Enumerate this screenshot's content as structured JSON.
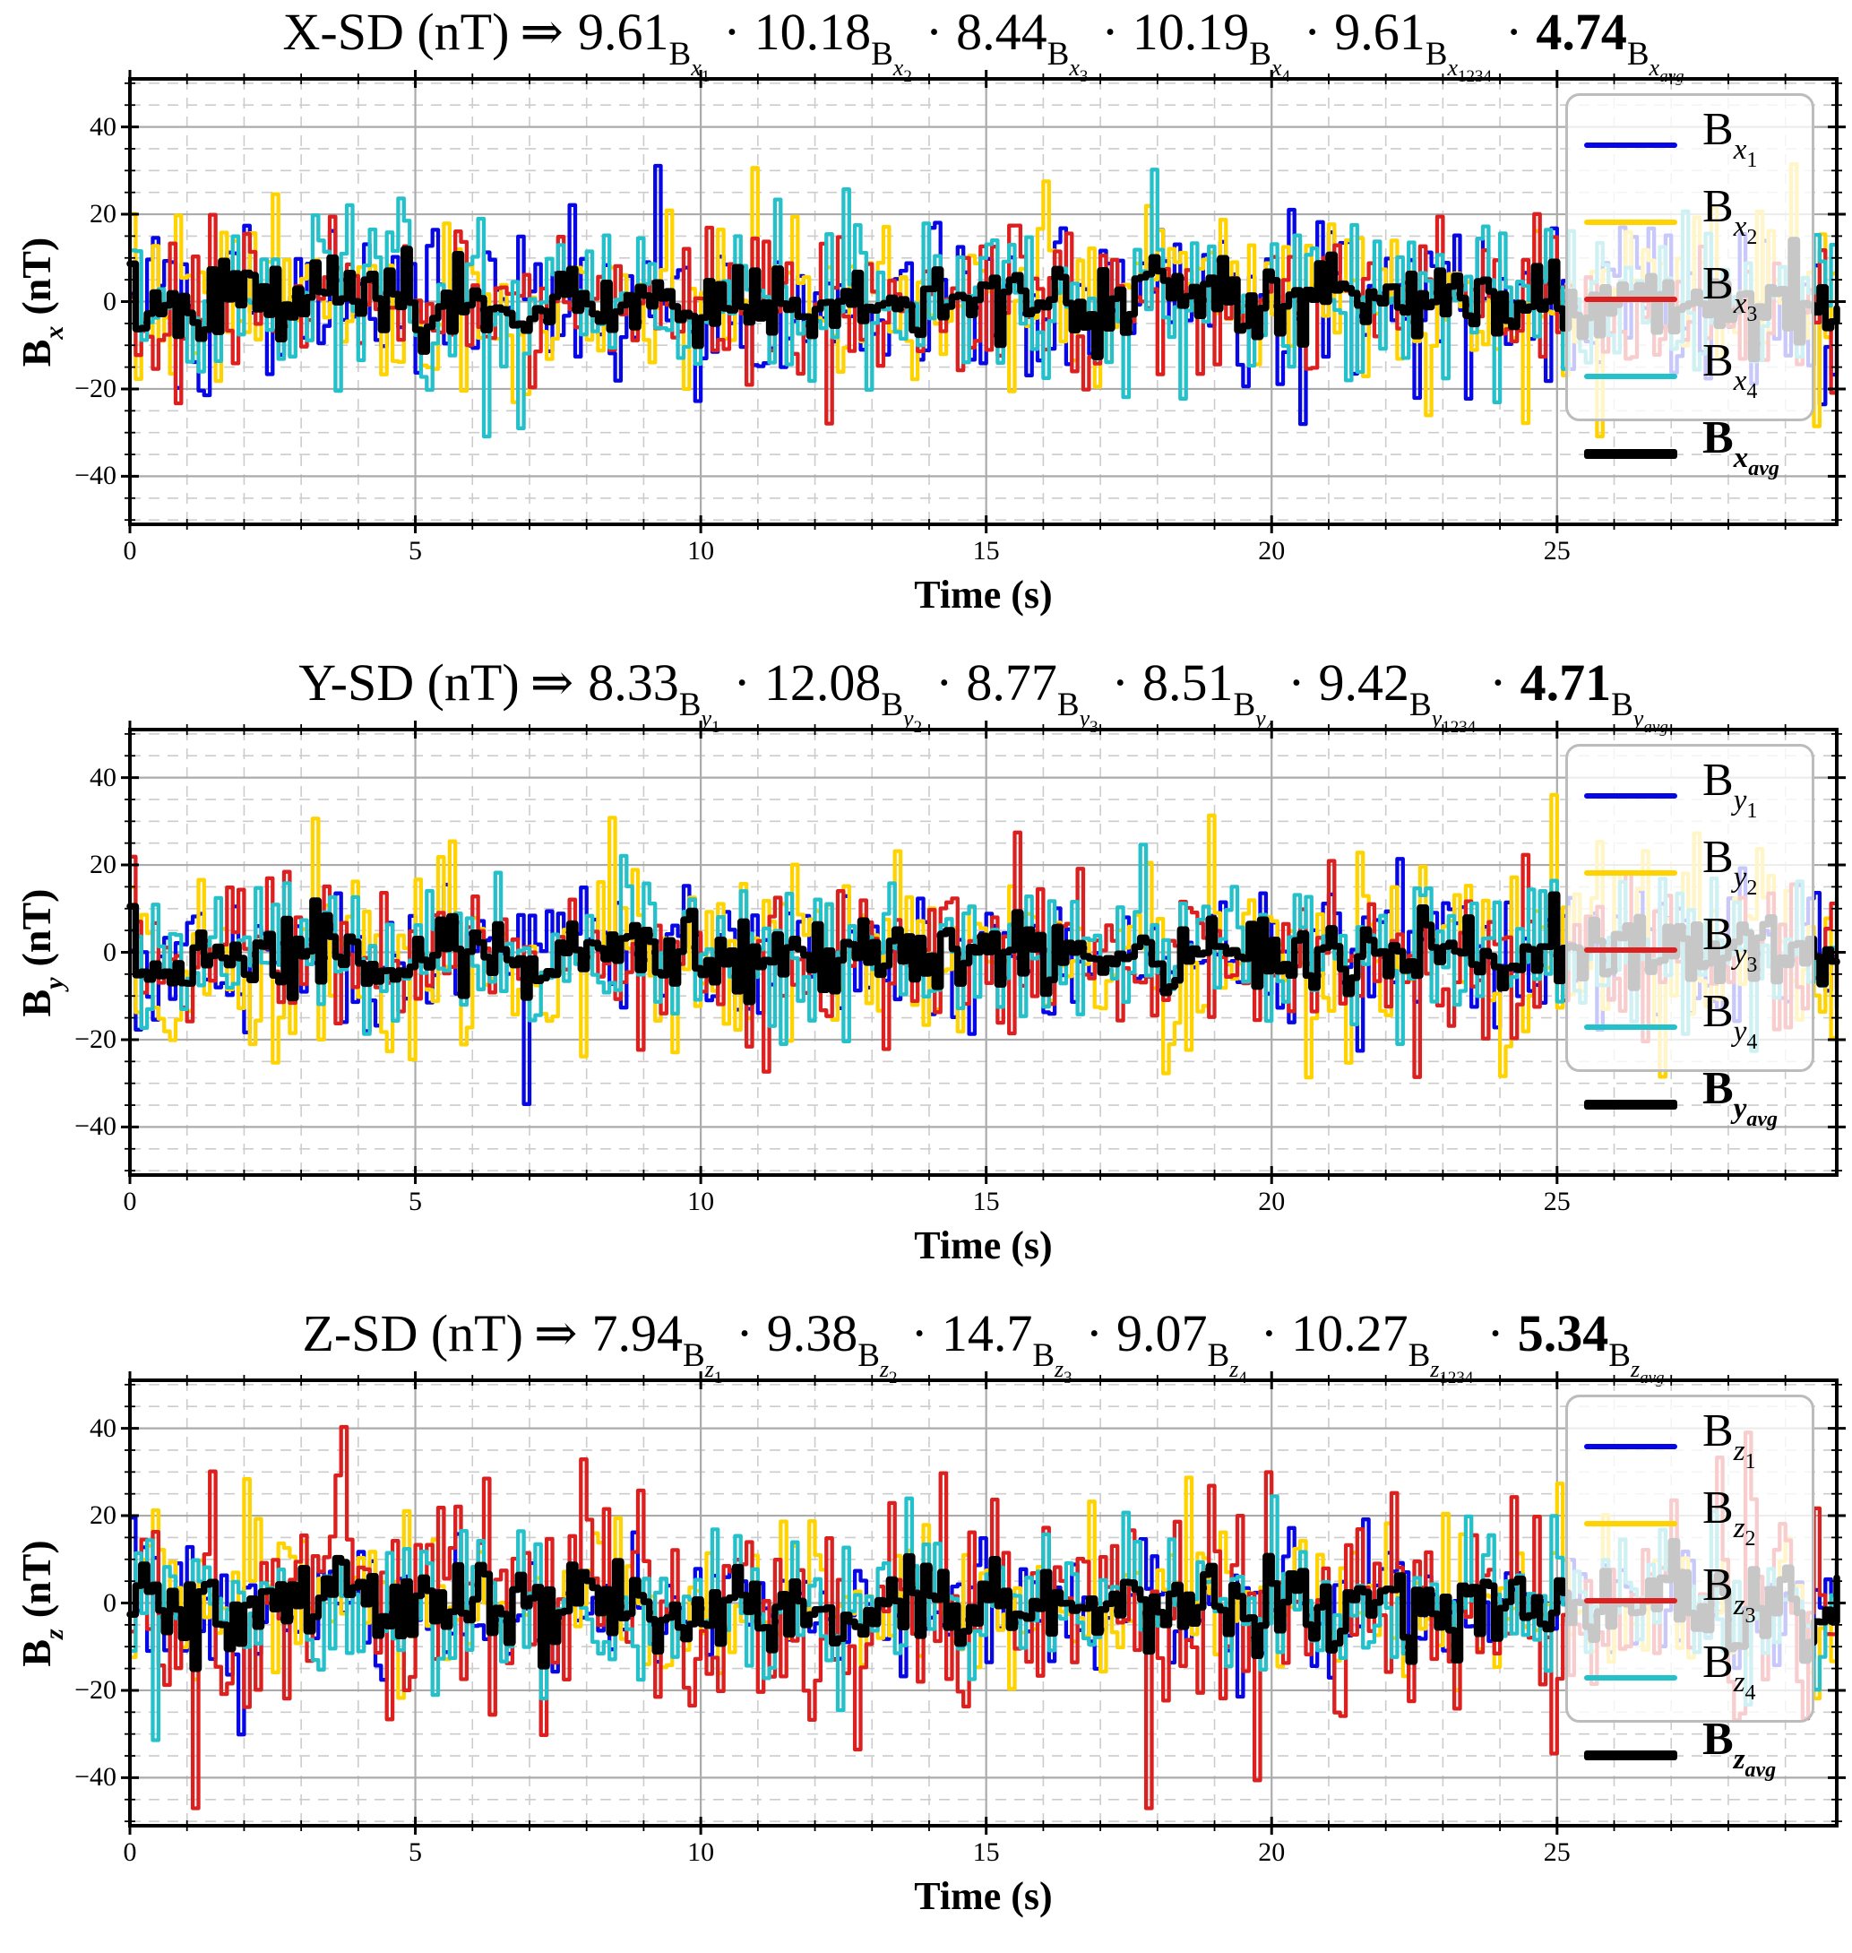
{
  "colors": {
    "b1": "#0707E6",
    "b2": "#FFD300",
    "b3": "#DC1F1F",
    "b4": "#25C1CB",
    "avg": "#000000",
    "grid_major": "#ABABAB",
    "grid_minor": "#CCCCCC",
    "spine": "#000000",
    "legend_border": "#BCBCBC"
  },
  "chart_data": [
    {
      "id": "x",
      "type": "line",
      "title": {
        "prefix": "X-SD (nT)",
        "arrow": "⇒",
        "sep": "·",
        "terms": [
          {
            "value": "9.61",
            "base": "B",
            "letter": "x",
            "index": "1",
            "bold": false
          },
          {
            "value": "10.18",
            "base": "B",
            "letter": "x",
            "index": "2",
            "bold": false
          },
          {
            "value": "8.44",
            "base": "B",
            "letter": "x",
            "index": "3",
            "bold": false
          },
          {
            "value": "10.19",
            "base": "B",
            "letter": "x",
            "index": "4",
            "bold": false
          },
          {
            "value": "9.61",
            "base": "B",
            "letter": "x",
            "index": "1234",
            "bold": false
          },
          {
            "value": "4.74",
            "base": "B",
            "letter": "x",
            "index": "avg",
            "bold": true
          }
        ]
      },
      "ylabel": {
        "base": "B",
        "sub": "x",
        "unit": "(nT)"
      },
      "xlabel": "Time (s)",
      "axes": {
        "xlim": [
          0,
          29.9
        ],
        "ylim": [
          -51,
          51
        ],
        "xticks": [
          0,
          5,
          10,
          15,
          20,
          25
        ],
        "xtick_labels": [
          "0",
          "5",
          "10",
          "15",
          "20",
          "25"
        ],
        "yticks": [
          40,
          20,
          0,
          -20,
          -40
        ],
        "ytick_labels": [
          "40",
          "20",
          "0",
          "−20",
          "−40"
        ],
        "x_minor_step": 1,
        "y_minor_step": 5,
        "grid_major": "solid",
        "grid_minor": "dashed"
      },
      "legend": {
        "position": "upper-right",
        "entries": [
          {
            "base": "B",
            "sub": "x",
            "index": "1",
            "color_key": "b1",
            "bold": false
          },
          {
            "base": "B",
            "sub": "x",
            "index": "2",
            "color_key": "b2",
            "bold": false
          },
          {
            "base": "B",
            "sub": "x",
            "index": "3",
            "color_key": "b3",
            "bold": false
          },
          {
            "base": "B",
            "sub": "x",
            "index": "4",
            "color_key": "b4",
            "bold": false
          },
          {
            "base": "B",
            "sub": "x",
            "index": "avg",
            "color_key": "avg",
            "bold": true
          }
        ]
      },
      "series": [
        {
          "key": "b1",
          "label": "Bx1",
          "sd": 9.61,
          "color_key": "b1",
          "lw": 4.3,
          "seed": 101
        },
        {
          "key": "b2",
          "label": "Bx2",
          "sd": 10.18,
          "color_key": "b2",
          "lw": 4.3,
          "seed": 202
        },
        {
          "key": "b3",
          "label": "Bx3",
          "sd": 8.44,
          "color_key": "b3",
          "lw": 4.3,
          "seed": 303
        },
        {
          "key": "b4",
          "label": "Bx4",
          "sd": 10.19,
          "color_key": "b4",
          "lw": 4.3,
          "seed": 404
        },
        {
          "key": "avg",
          "label": "Bxavg",
          "sd": 4.74,
          "color_key": "avg",
          "lw": 7.5,
          "derived": "mean of the four sensor series"
        }
      ],
      "combined_sd": {
        "label": "Bx1234",
        "value": 9.61
      },
      "sampling": {
        "dt": 0.1,
        "model": "zero-mean gaussian noise; individual samples not readable from figure, SDs printed in title"
      }
    },
    {
      "id": "y",
      "type": "line",
      "title": {
        "prefix": "Y-SD (nT)",
        "arrow": "⇒",
        "sep": "·",
        "terms": [
          {
            "value": "8.33",
            "base": "B",
            "letter": "y",
            "index": "1",
            "bold": false
          },
          {
            "value": "12.08",
            "base": "B",
            "letter": "y",
            "index": "2",
            "bold": false
          },
          {
            "value": "8.77",
            "base": "B",
            "letter": "y",
            "index": "3",
            "bold": false
          },
          {
            "value": "8.51",
            "base": "B",
            "letter": "y",
            "index": "4",
            "bold": false
          },
          {
            "value": "9.42",
            "base": "B",
            "letter": "y",
            "index": "1234",
            "bold": false
          },
          {
            "value": "4.71",
            "base": "B",
            "letter": "y",
            "index": "avg",
            "bold": true
          }
        ]
      },
      "ylabel": {
        "base": "B",
        "sub": "y",
        "unit": "(nT)"
      },
      "xlabel": "Time (s)",
      "axes": {
        "xlim": [
          0,
          29.9
        ],
        "ylim": [
          -51,
          51
        ],
        "xticks": [
          0,
          5,
          10,
          15,
          20,
          25
        ],
        "xtick_labels": [
          "0",
          "5",
          "10",
          "15",
          "20",
          "25"
        ],
        "yticks": [
          40,
          20,
          0,
          -20,
          -40
        ],
        "ytick_labels": [
          "40",
          "20",
          "0",
          "−20",
          "−40"
        ],
        "x_minor_step": 1,
        "y_minor_step": 5,
        "grid_major": "solid",
        "grid_minor": "dashed"
      },
      "legend": {
        "position": "upper-right",
        "entries": [
          {
            "base": "B",
            "sub": "y",
            "index": "1",
            "color_key": "b1",
            "bold": false
          },
          {
            "base": "B",
            "sub": "y",
            "index": "2",
            "color_key": "b2",
            "bold": false
          },
          {
            "base": "B",
            "sub": "y",
            "index": "3",
            "color_key": "b3",
            "bold": false
          },
          {
            "base": "B",
            "sub": "y",
            "index": "4",
            "color_key": "b4",
            "bold": false
          },
          {
            "base": "B",
            "sub": "y",
            "index": "avg",
            "color_key": "avg",
            "bold": true
          }
        ]
      },
      "series": [
        {
          "key": "b1",
          "label": "By1",
          "sd": 8.33,
          "color_key": "b1",
          "lw": 4.3,
          "seed": 111
        },
        {
          "key": "b2",
          "label": "By2",
          "sd": 12.08,
          "color_key": "b2",
          "lw": 4.3,
          "seed": 212
        },
        {
          "key": "b3",
          "label": "By3",
          "sd": 8.77,
          "color_key": "b3",
          "lw": 4.3,
          "seed": 313
        },
        {
          "key": "b4",
          "label": "By4",
          "sd": 8.51,
          "color_key": "b4",
          "lw": 4.3,
          "seed": 414
        },
        {
          "key": "avg",
          "label": "Byavg",
          "sd": 4.71,
          "color_key": "avg",
          "lw": 7.5,
          "derived": "mean of the four sensor series"
        }
      ],
      "combined_sd": {
        "label": "By1234",
        "value": 9.42
      },
      "sampling": {
        "dt": 0.1,
        "model": "zero-mean gaussian noise; individual samples not readable from figure, SDs printed in title"
      }
    },
    {
      "id": "z",
      "type": "line",
      "title": {
        "prefix": "Z-SD (nT)",
        "arrow": "⇒",
        "sep": "·",
        "terms": [
          {
            "value": "7.94",
            "base": "B",
            "letter": "z",
            "index": "1",
            "bold": false
          },
          {
            "value": "9.38",
            "base": "B",
            "letter": "z",
            "index": "2",
            "bold": false
          },
          {
            "value": "14.7",
            "base": "B",
            "letter": "z",
            "index": "3",
            "bold": false
          },
          {
            "value": "9.07",
            "base": "B",
            "letter": "z",
            "index": "4",
            "bold": false
          },
          {
            "value": "10.27",
            "base": "B",
            "letter": "z",
            "index": "1234",
            "bold": false
          },
          {
            "value": "5.34",
            "base": "B",
            "letter": "z",
            "index": "avg",
            "bold": true
          }
        ]
      },
      "ylabel": {
        "base": "B",
        "sub": "z",
        "unit": "(nT)"
      },
      "xlabel": "Time (s)",
      "axes": {
        "xlim": [
          0,
          29.9
        ],
        "ylim": [
          -51,
          51
        ],
        "xticks": [
          0,
          5,
          10,
          15,
          20,
          25
        ],
        "xtick_labels": [
          "0",
          "5",
          "10",
          "15",
          "20",
          "25"
        ],
        "yticks": [
          40,
          20,
          0,
          -20,
          -40
        ],
        "ytick_labels": [
          "40",
          "20",
          "0",
          "−20",
          "−40"
        ],
        "x_minor_step": 1,
        "y_minor_step": 5,
        "grid_major": "solid",
        "grid_minor": "dashed"
      },
      "legend": {
        "position": "upper-right",
        "entries": [
          {
            "base": "B",
            "sub": "z",
            "index": "1",
            "color_key": "b1",
            "bold": false
          },
          {
            "base": "B",
            "sub": "z",
            "index": "2",
            "color_key": "b2",
            "bold": false
          },
          {
            "base": "B",
            "sub": "z",
            "index": "3",
            "color_key": "b3",
            "bold": false
          },
          {
            "base": "B",
            "sub": "z",
            "index": "4",
            "color_key": "b4",
            "bold": false
          },
          {
            "base": "B",
            "sub": "z",
            "index": "avg",
            "color_key": "avg",
            "bold": true
          }
        ]
      },
      "series": [
        {
          "key": "b1",
          "label": "Bz1",
          "sd": 7.94,
          "color_key": "b1",
          "lw": 4.3,
          "seed": 121
        },
        {
          "key": "b2",
          "label": "Bz2",
          "sd": 9.38,
          "color_key": "b2",
          "lw": 4.3,
          "seed": 222
        },
        {
          "key": "b3",
          "label": "Bz3",
          "sd": 14.7,
          "color_key": "b3",
          "lw": 4.3,
          "seed": 323
        },
        {
          "key": "b4",
          "label": "Bz4",
          "sd": 9.07,
          "color_key": "b4",
          "lw": 4.3,
          "seed": 424
        },
        {
          "key": "avg",
          "label": "Bzavg",
          "sd": 5.34,
          "color_key": "avg",
          "lw": 7.5,
          "derived": "mean of the four sensor series"
        }
      ],
      "combined_sd": {
        "label": "Bz1234",
        "value": 10.27
      },
      "sampling": {
        "dt": 0.1,
        "model": "zero-mean gaussian noise; individual samples not readable from figure, SDs printed in title"
      }
    }
  ]
}
